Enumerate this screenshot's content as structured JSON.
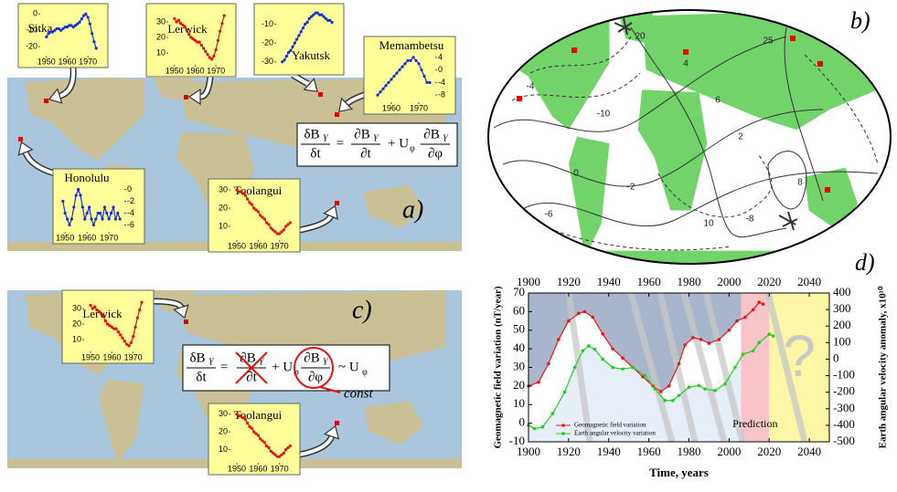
{
  "panel_labels": [
    "a)",
    "b)",
    "c)",
    "d)"
  ],
  "insets": [
    {
      "name": "Sitka",
      "color": "#1a2fd6",
      "yaxis": "left",
      "xlim": [
        1947,
        1977
      ],
      "ylim": [
        -25,
        3
      ],
      "xticks": [
        1950,
        1960,
        1970
      ],
      "yticks": [
        0,
        -10,
        -20
      ],
      "x": [
        1950,
        1951,
        1952,
        1953,
        1954,
        1955,
        1956,
        1957,
        1958,
        1959,
        1960,
        1961,
        1962,
        1963,
        1964,
        1965,
        1966,
        1967,
        1968,
        1969,
        1970,
        1971,
        1972,
        1973,
        1974
      ],
      "values": [
        -14,
        -12,
        -11,
        -11,
        -10,
        -9,
        -9,
        -10,
        -9,
        -8,
        -8,
        -7,
        -7,
        -8,
        -7,
        -6,
        -5,
        -3,
        -1,
        0,
        -2,
        -6,
        -12,
        -17,
        -21
      ]
    },
    {
      "name": "Lerwick",
      "color": "#e0100c",
      "yaxis": "left",
      "xlim": [
        1947,
        1977
      ],
      "ylim": [
        3,
        37
      ],
      "xticks": [
        1950,
        1960,
        1970
      ],
      "yticks": [
        30,
        20,
        10
      ],
      "x": [
        1950,
        1951,
        1952,
        1953,
        1954,
        1955,
        1956,
        1957,
        1958,
        1959,
        1960,
        1961,
        1962,
        1963,
        1964,
        1965,
        1966,
        1967,
        1968,
        1969,
        1970,
        1971,
        1972,
        1973,
        1974
      ],
      "values": [
        32,
        30,
        31,
        29,
        28,
        27,
        25,
        22,
        20,
        19,
        18,
        17,
        17,
        15,
        13,
        11,
        9,
        7,
        6,
        8,
        12,
        18,
        24,
        29,
        34
      ]
    },
    {
      "name": "Yakutsk",
      "color": "#1a2fd6",
      "yaxis": "left",
      "xlim": [
        1947,
        1977
      ],
      "ylim": [
        -34,
        -2
      ],
      "yticks": [
        -10,
        -20,
        -30
      ],
      "x": [
        1950,
        1951,
        1952,
        1953,
        1954,
        1955,
        1956,
        1957,
        1958,
        1959,
        1960,
        1961,
        1962,
        1963,
        1964,
        1965,
        1966,
        1967,
        1968,
        1969,
        1970,
        1971,
        1972,
        1973,
        1974
      ],
      "values": [
        -30,
        -29,
        -27,
        -25,
        -24,
        -22,
        -20,
        -18,
        -16,
        -14,
        -12,
        -10,
        -9,
        -7,
        -6,
        -5,
        -4,
        -4,
        -5,
        -5,
        -6,
        -7,
        -8,
        -8,
        -9
      ]
    },
    {
      "name": "Memambetsu",
      "color": "#1a2fd6",
      "yaxis": "right",
      "xlim": [
        1952,
        1976
      ],
      "ylim": [
        -10,
        6
      ],
      "xticks": [
        1960,
        1970
      ],
      "yticks": [
        4,
        0,
        -4,
        -8
      ],
      "x": [
        1955,
        1956,
        1957,
        1958,
        1959,
        1960,
        1961,
        1962,
        1963,
        1964,
        1965,
        1966,
        1967,
        1968,
        1969,
        1970,
        1971,
        1972,
        1973,
        1974
      ],
      "values": [
        -8,
        -7,
        -6,
        -5,
        -4,
        -3,
        -2,
        -1,
        0,
        1,
        2,
        3,
        3,
        4,
        3,
        2,
        0,
        -2,
        -4,
        -4
      ]
    },
    {
      "name": "Honolulu",
      "color": "#1a2fd6",
      "yaxis": "right",
      "xlim": [
        1947,
        1977
      ],
      "ylim": [
        -7,
        1
      ],
      "xticks": [
        1950,
        1960,
        1970
      ],
      "yticks": [
        0,
        -2,
        -4,
        -6
      ],
      "x": [
        1949,
        1950,
        1951,
        1952,
        1953,
        1954,
        1955,
        1956,
        1957,
        1958,
        1959,
        1960,
        1961,
        1962,
        1963,
        1964,
        1965,
        1966,
        1967,
        1968,
        1969,
        1970,
        1971,
        1972,
        1973,
        1974,
        1975
      ],
      "values": [
        -2,
        -4,
        -5,
        -6,
        -5,
        -3,
        -1,
        0,
        -1,
        -3,
        -5,
        -4,
        -3,
        -5,
        -6,
        -5,
        -4,
        -4,
        -5,
        -3,
        -4,
        -5,
        -4,
        -3,
        -5,
        -4,
        -5
      ]
    },
    {
      "name": "Toolangui",
      "color": "#e0100c",
      "yaxis": "left",
      "xlim": [
        1947,
        1977
      ],
      "ylim": [
        3,
        33
      ],
      "xticks": [
        1950,
        1960,
        1970
      ],
      "yticks": [
        30,
        20,
        10
      ],
      "x": [
        1950,
        1951,
        1952,
        1953,
        1954,
        1955,
        1956,
        1957,
        1958,
        1959,
        1960,
        1961,
        1962,
        1963,
        1964,
        1965,
        1966,
        1967,
        1968,
        1969,
        1970,
        1971,
        1972,
        1973,
        1974,
        1975
      ],
      "values": [
        30,
        29,
        29,
        28,
        27,
        25,
        23,
        22,
        20,
        19,
        18,
        16,
        15,
        14,
        12,
        11,
        9,
        8,
        7,
        6,
        6,
        7,
        8,
        10,
        11,
        12
      ]
    }
  ],
  "equation_a": {
    "lhs": {
      "num": "δB",
      "sub": "Y",
      "den": "δt"
    },
    "eq": "=",
    "t1": {
      "num": "∂B",
      "sub": "Y",
      "den": "∂t"
    },
    "plus": "+ U",
    "u_sub": "φ",
    "t2": {
      "num": "∂B",
      "sub": "Y",
      "den": "∂φ"
    }
  },
  "equation_c": {
    "lhs": {
      "num": "δB",
      "sub": "Y",
      "den": "δt"
    },
    "eq": "=",
    "t1": {
      "num": "∂B",
      "sub": "Y",
      "den": "∂t"
    },
    "plus": "+ U",
    "u_sub": "φ",
    "t2": {
      "num": "∂B",
      "sub": "Y",
      "den": "∂φ"
    },
    "sim": "~ U",
    "sim_sub": "φ",
    "const": "const"
  },
  "contour_labels": [
    "-10",
    "20",
    "25",
    "-8",
    "-6",
    "-4",
    "-2",
    "0",
    "2",
    "4",
    "6",
    "8",
    "10"
  ],
  "chart_data": {
    "type": "line",
    "xlabel": "Time, years",
    "ylabel": "Geomagnetic field variation (nT/year)",
    "y2label": "Earth angular velocity anomaly, x10¹⁰",
    "xlim": [
      1900,
      2050
    ],
    "xticks": [
      1900,
      1920,
      1940,
      1960,
      1980,
      2000,
      2020,
      2040
    ],
    "ylim": [
      -10,
      70
    ],
    "yticks": [
      -10,
      0,
      10,
      20,
      30,
      40,
      50,
      60,
      70
    ],
    "y2lim": [
      -500,
      400
    ],
    "y2ticks": [
      -500,
      -400,
      -300,
      -200,
      -100,
      0,
      100,
      200,
      300,
      400
    ],
    "prediction_span": [
      2006,
      2020
    ],
    "prediction_label": "Prediction",
    "question_mark": "?",
    "series": [
      {
        "name": "Geomagnetic field variation",
        "color": "#e8141c",
        "x": [
          1900,
          1905,
          1910,
          1915,
          1920,
          1925,
          1928,
          1932,
          1937,
          1942,
          1947,
          1952,
          1957,
          1962,
          1966,
          1970,
          1975,
          1978,
          1982,
          1986,
          1990,
          1995,
          2000,
          2004,
          2008,
          2012,
          2015,
          2017
        ],
        "values": [
          20,
          22,
          32,
          45,
          55,
          59,
          60,
          57,
          48,
          40,
          35,
          30,
          25,
          20,
          17,
          20,
          32,
          42,
          46,
          45,
          43,
          45,
          50,
          55,
          57,
          61,
          65,
          64
        ]
      },
      {
        "name": "Earth angular velocity variation",
        "color": "#22cc22",
        "axis": "y2",
        "x": [
          1900,
          1903,
          1907,
          1912,
          1918,
          1923,
          1927,
          1930,
          1933,
          1937,
          1942,
          1947,
          1952,
          1958,
          1963,
          1968,
          1972,
          1975,
          1980,
          1985,
          1988,
          1993,
          1998,
          2003,
          2007,
          2012,
          2015,
          2020,
          2022
        ],
        "values": [
          -400,
          -420,
          -410,
          -330,
          -200,
          -50,
          50,
          80,
          60,
          0,
          -50,
          -60,
          -50,
          -100,
          -180,
          -250,
          -250,
          -220,
          -170,
          -160,
          -180,
          -190,
          -150,
          -50,
          30,
          50,
          100,
          150,
          140
        ]
      }
    ]
  }
}
